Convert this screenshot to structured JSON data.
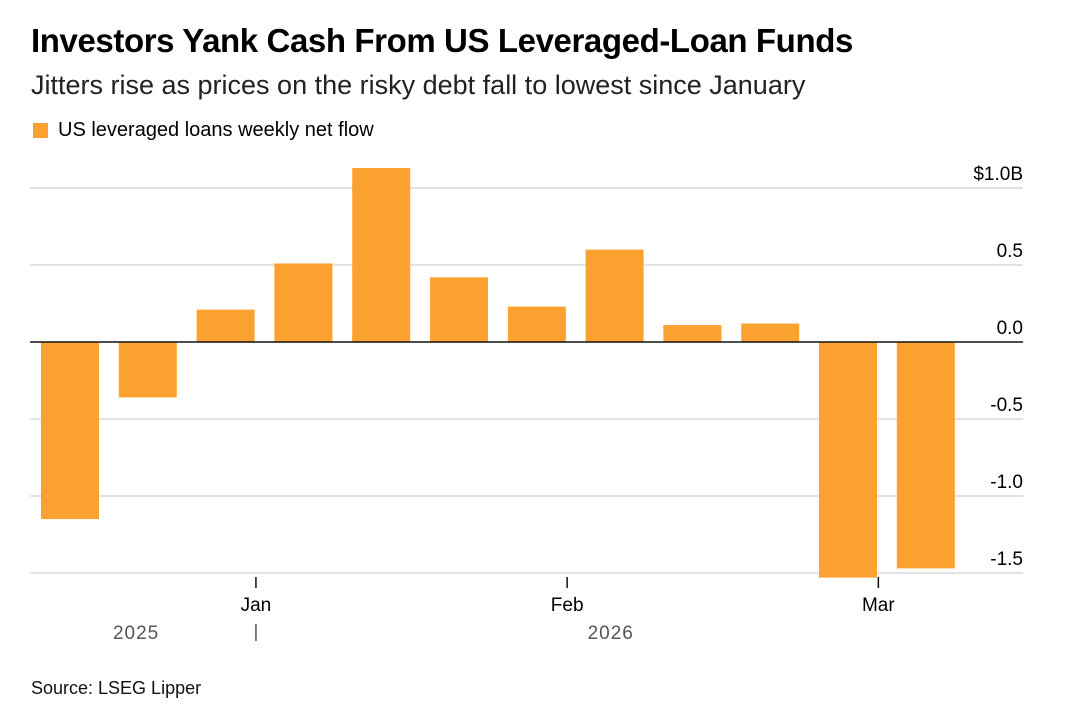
{
  "title": "Investors Yank Cash From US Leveraged-Loan Funds",
  "subtitle": "Jitters rise as prices on the risky debt fall to lowest since January",
  "source": "Source: LSEG Lipper",
  "colors": {
    "bar": "#FBA12F",
    "grid": "#D9D9D9",
    "zero_line": "#111111",
    "text": "#000000",
    "year_label": "#555555"
  },
  "chart_data": {
    "type": "bar",
    "title": "Investors Yank Cash From US Leveraged-Loan Funds",
    "subtitle": "Jitters rise as prices on the risky debt fall to lowest since January",
    "ylim": [
      -1.5,
      1.0
    ],
    "y_ticks": [
      {
        "value": 1.0,
        "label": "$1.0B"
      },
      {
        "value": 0.5,
        "label": "0.5"
      },
      {
        "value": 0.0,
        "label": "0.0"
      },
      {
        "value": -0.5,
        "label": "-0.5"
      },
      {
        "value": -1.0,
        "label": "-1.0"
      },
      {
        "value": -1.5,
        "label": "-1.5"
      }
    ],
    "x_ticks": [
      {
        "label": "Jan",
        "week_index": 2.39
      },
      {
        "label": "Feb",
        "week_index": 6.39
      },
      {
        "label": "Mar",
        "week_index": 10.39
      }
    ],
    "year_labels": [
      {
        "label": "2025",
        "week_index": 0.85
      },
      {
        "label": "2026",
        "week_index": 6.95
      }
    ],
    "year_divider_week_index": 2.39,
    "grid": true,
    "legend_position": "top-left",
    "series": [
      {
        "name": "US leveraged loans weekly net flow",
        "color": "#FBA12F",
        "values": [
          -1.15,
          -0.36,
          0.21,
          0.51,
          1.13,
          0.42,
          0.23,
          0.6,
          0.11,
          0.12,
          -1.53,
          -1.47
        ]
      }
    ]
  }
}
